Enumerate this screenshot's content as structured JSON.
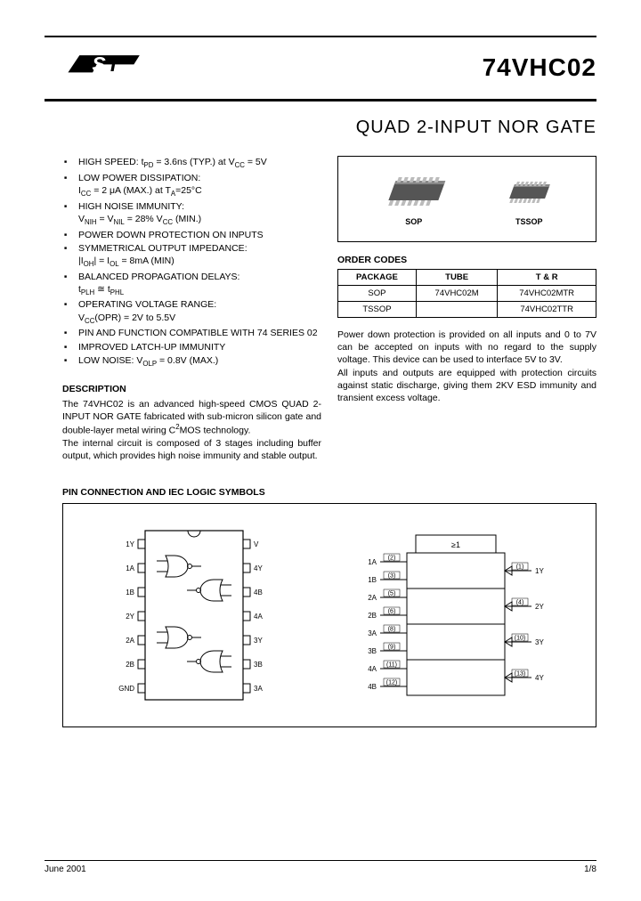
{
  "header": {
    "part_number": "74VHC02",
    "title": "QUAD 2-INPUT NOR GATE"
  },
  "features": [
    "HIGH SPEED: t<sub>PD</sub> = 3.6ns (TYP.) at V<sub>CC</sub> = 5V",
    "LOW POWER DISSIPATION:<br>I<sub>CC</sub> = 2 μA (MAX.) at T<sub>A</sub>=25°C",
    "HIGH NOISE IMMUNITY:<br>V<sub>NIH</sub> = V<sub>NIL</sub> = 28% V<sub>CC</sub> (MIN.)",
    "POWER DOWN PROTECTION ON INPUTS",
    "SYMMETRICAL OUTPUT IMPEDANCE:<br>|I<sub>OH</sub>| = I<sub>OL</sub> = 8mA (MIN)",
    "BALANCED PROPAGATION DELAYS:<br>t<sub>PLH</sub> ≅ t<sub>PHL</sub>",
    "OPERATING VOLTAGE RANGE:<br>V<sub>CC</sub>(OPR) = 2V to 5.5V",
    "PIN AND FUNCTION COMPATIBLE WITH 74 SERIES 02",
    "IMPROVED LATCH-UP IMMUNITY",
    "LOW NOISE: V<sub>OLP</sub> = 0.8V (MAX.)"
  ],
  "description": {
    "heading": "DESCRIPTION",
    "text": "The 74VHC02 is an advanced high-speed CMOS QUAD 2-INPUT NOR GATE fabricated with sub-micron silicon gate and double-layer metal wiring C<sup>2</sup>MOS technology.<br>The internal circuit is composed of 3 stages including buffer output, which provides high noise immunity and stable output."
  },
  "packages": {
    "sop_label": "SOP",
    "tssop_label": "TSSOP"
  },
  "order_codes": {
    "heading": "ORDER CODES",
    "columns": [
      "PACKAGE",
      "TUBE",
      "T & R"
    ],
    "rows": [
      [
        "SOP",
        "74VHC02M",
        "74VHC02MTR"
      ],
      [
        "TSSOP",
        "",
        "74VHC02TTR"
      ]
    ]
  },
  "right_desc": "Power down protection is provided on all inputs and 0 to 7V can be accepted on inputs with no regard to the supply voltage. This device can be used to interface 5V to 3V.<br>All inputs and outputs are equipped with protection circuits against static discharge, giving them 2KV ESD immunity and transient excess voltage.",
  "pin_section": {
    "heading": "PIN CONNECTION AND IEC LOGIC SYMBOLS"
  },
  "pin_diagram": {
    "left_labels": [
      "1Y",
      "1A",
      "1B",
      "2Y",
      "2A",
      "2B",
      "GND"
    ],
    "right_labels": [
      "V<sub>CC</sub>",
      "4Y",
      "4B",
      "4A",
      "3Y",
      "3B",
      "3A"
    ]
  },
  "iec_diagram": {
    "header": "≥1",
    "left_pins": [
      {
        "pin": "2",
        "name": "1A"
      },
      {
        "pin": "3",
        "name": "1B"
      },
      {
        "pin": "5",
        "name": "2A"
      },
      {
        "pin": "6",
        "name": "2B"
      },
      {
        "pin": "8",
        "name": "3A"
      },
      {
        "pin": "9",
        "name": "3B"
      },
      {
        "pin": "11",
        "name": "4A"
      },
      {
        "pin": "12",
        "name": "4B"
      }
    ],
    "right_pins": [
      {
        "pin": "1",
        "name": "1Y"
      },
      {
        "pin": "4",
        "name": "2Y"
      },
      {
        "pin": "10",
        "name": "3Y"
      },
      {
        "pin": "13",
        "name": "4Y"
      }
    ]
  },
  "footer": {
    "date": "June 2001",
    "page": "1/8"
  },
  "colors": {
    "text": "#000000",
    "border": "#000000",
    "background": "#ffffff",
    "chip_body": "#555555",
    "chip_pin": "#bbbbbb"
  }
}
